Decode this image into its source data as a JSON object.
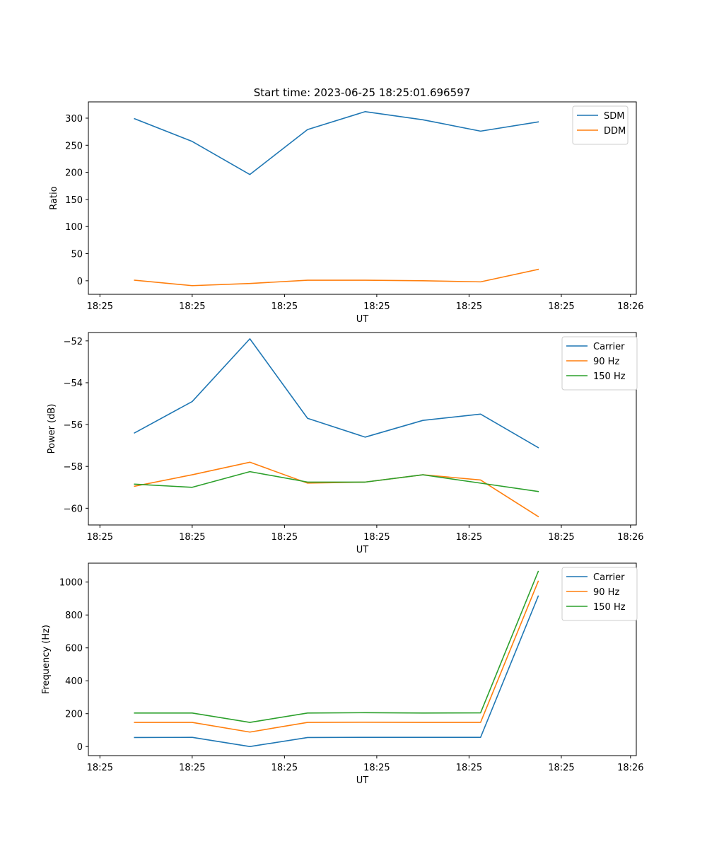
{
  "figure": {
    "title": "Start time: 2023-06-25 18:25:01.696597"
  },
  "chart_data": [
    {
      "type": "line",
      "title": "Start time: 2023-06-25 18:25:01.696597",
      "xlabel": "UT",
      "ylabel": "Ratio",
      "x_tick_labels": [
        "18:25",
        "18:25",
        "18:25",
        "18:25",
        "18:25",
        "18:25",
        "18:25"
      ],
      "x_tick_labels_end": "18:26",
      "y_ticks": [
        0,
        50,
        100,
        150,
        200,
        250,
        300
      ],
      "ylim": [
        -25,
        330
      ],
      "legend_position": "top-right",
      "grid": false,
      "x": [
        1,
        2,
        3,
        4,
        5,
        6,
        7,
        8
      ],
      "xlim": [
        0.2,
        9.7
      ],
      "x_tick_positions": [
        0.4,
        2.0,
        3.6,
        5.2,
        6.8,
        8.4,
        9.6
      ],
      "series": [
        {
          "name": "SDM",
          "color": "#1f77b4",
          "values": [
            299,
            257,
            196,
            279,
            312,
            297,
            276,
            293
          ]
        },
        {
          "name": "DDM",
          "color": "#ff7f0e",
          "values": [
            1,
            -9,
            -5,
            1,
            1,
            0,
            -2,
            21
          ]
        }
      ]
    },
    {
      "type": "line",
      "title": "",
      "xlabel": "UT",
      "ylabel": "Power (dB)",
      "x_tick_labels": [
        "18:25",
        "18:25",
        "18:25",
        "18:25",
        "18:25",
        "18:25",
        "18:25"
      ],
      "x_tick_labels_end": "18:26",
      "y_ticks": [
        -60,
        -58,
        -56,
        -54,
        -52
      ],
      "ylim": [
        -60.8,
        -51.6
      ],
      "legend_position": "top-right",
      "grid": false,
      "x": [
        1,
        2,
        3,
        4,
        5,
        6,
        7,
        8
      ],
      "xlim": [
        0.2,
        9.7
      ],
      "x_tick_positions": [
        0.4,
        2.0,
        3.6,
        5.2,
        6.8,
        8.4,
        9.6
      ],
      "series": [
        {
          "name": "Carrier",
          "color": "#1f77b4",
          "values": [
            -56.4,
            -54.9,
            -51.9,
            -55.7,
            -56.6,
            -55.8,
            -55.5,
            -57.1
          ]
        },
        {
          "name": "90 Hz",
          "color": "#ff7f0e",
          "values": [
            -58.95,
            -58.4,
            -57.8,
            -58.8,
            -58.75,
            -58.4,
            -58.65,
            -60.4
          ]
        },
        {
          "name": "150 Hz",
          "color": "#2ca02c",
          "values": [
            -58.85,
            -59.0,
            -58.25,
            -58.75,
            -58.75,
            -58.4,
            -58.8,
            -59.2
          ]
        }
      ]
    },
    {
      "type": "line",
      "title": "",
      "xlabel": "UT",
      "ylabel": "Frequency (Hz)",
      "x_tick_labels": [
        "18:25",
        "18:25",
        "18:25",
        "18:25",
        "18:25",
        "18:25",
        "18:25"
      ],
      "x_tick_labels_end": "18:26",
      "y_ticks": [
        0,
        200,
        400,
        600,
        800,
        1000
      ],
      "ylim": [
        -55,
        1115
      ],
      "legend_position": "top-right",
      "grid": false,
      "x": [
        1,
        2,
        3,
        4,
        5,
        6,
        7,
        8
      ],
      "xlim": [
        0.2,
        9.7
      ],
      "x_tick_positions": [
        0.4,
        2.0,
        3.6,
        5.2,
        6.8,
        8.4,
        9.6
      ],
      "series": [
        {
          "name": "Carrier",
          "color": "#1f77b4",
          "values": [
            55,
            56,
            0,
            55,
            56,
            56,
            56,
            915
          ]
        },
        {
          "name": "90 Hz",
          "color": "#ff7f0e",
          "values": [
            147,
            147,
            88,
            147,
            148,
            147,
            147,
            1005
          ]
        },
        {
          "name": "150 Hz",
          "color": "#2ca02c",
          "values": [
            204,
            204,
            147,
            204,
            206,
            204,
            205,
            1065
          ]
        }
      ]
    }
  ]
}
